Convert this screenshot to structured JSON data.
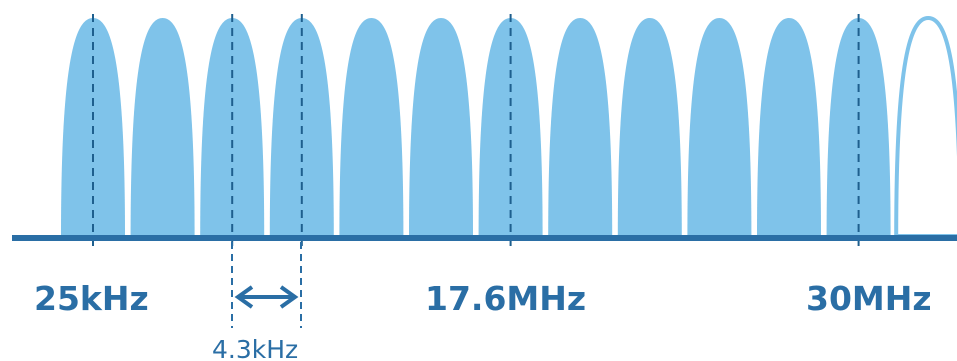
{
  "diagram": {
    "colors": {
      "subcarrier_fill": "#7fc3ea",
      "baseline": "#2a6ea5",
      "marker_line": "#1e5f8e",
      "text": "#2a6ea5",
      "arrow": "#2a6ea5"
    },
    "subcarrier_count": 13,
    "last_subcarrier_style": "outline",
    "labels": {
      "start_freq": "25kHz",
      "mid_freq": "17.6MHz",
      "end_freq": "30MHz",
      "spacing": "4.3kHz"
    }
  }
}
